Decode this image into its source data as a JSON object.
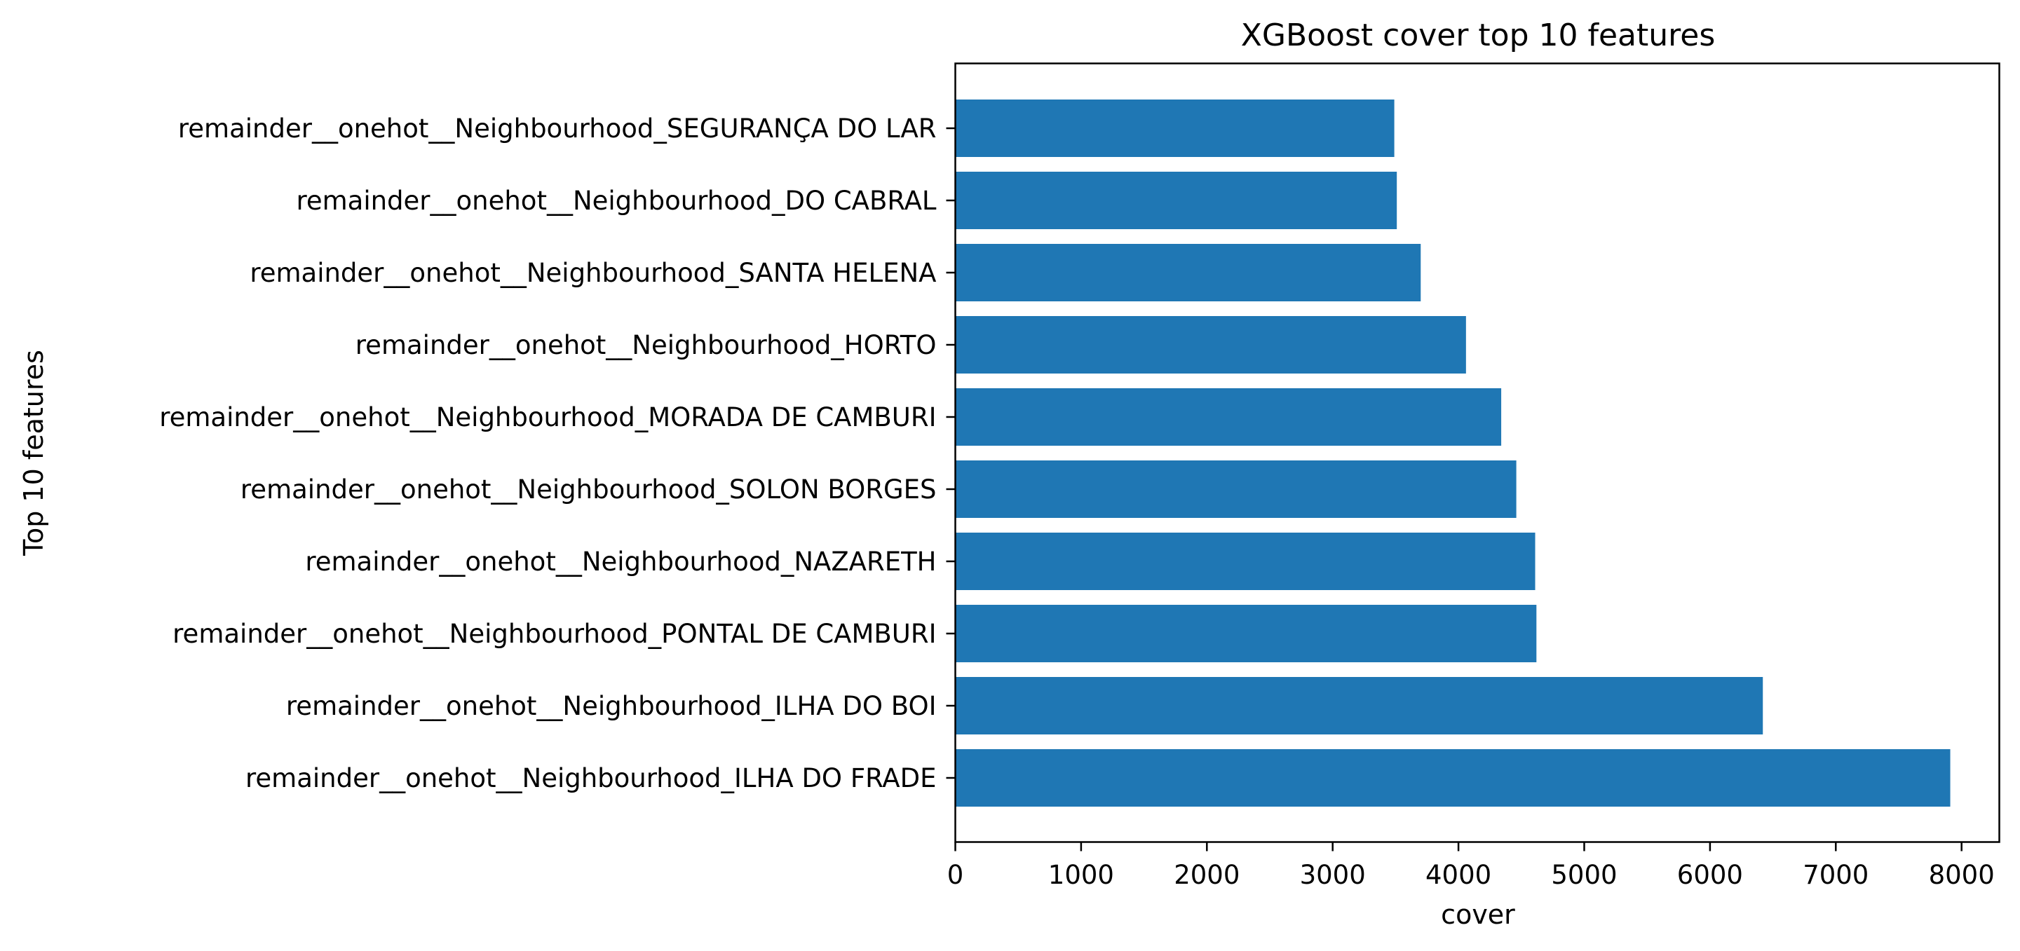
{
  "chart_data": {
    "type": "bar",
    "orientation": "horizontal",
    "title": "XGBoost cover top 10 features",
    "xlabel": "cover",
    "ylabel": "Top 10 features",
    "xlim": [
      0,
      8300
    ],
    "xticks": [
      0,
      1000,
      2000,
      3000,
      4000,
      5000,
      6000,
      7000,
      8000
    ],
    "grid": false,
    "bar_color": "#1f77b4",
    "categories": [
      "remainder__onehot__Neighbourhood_ILHA DO FRADE",
      "remainder__onehot__Neighbourhood_ILHA DO BOI",
      "remainder__onehot__Neighbourhood_PONTAL DE CAMBURI",
      "remainder__onehot__Neighbourhood_NAZARETH",
      "remainder__onehot__Neighbourhood_SOLON BORGES",
      "remainder__onehot__Neighbourhood_MORADA DE CAMBURI",
      "remainder__onehot__Neighbourhood_HORTO",
      "remainder__onehot__Neighbourhood_SANTA HELENA",
      "remainder__onehot__Neighbourhood_DO CABRAL",
      "remainder__onehot__Neighbourhood_SEGURANÇA DO LAR"
    ],
    "values": [
      7910,
      6420,
      4620,
      4610,
      4460,
      4340,
      4060,
      3700,
      3510,
      3490
    ]
  }
}
